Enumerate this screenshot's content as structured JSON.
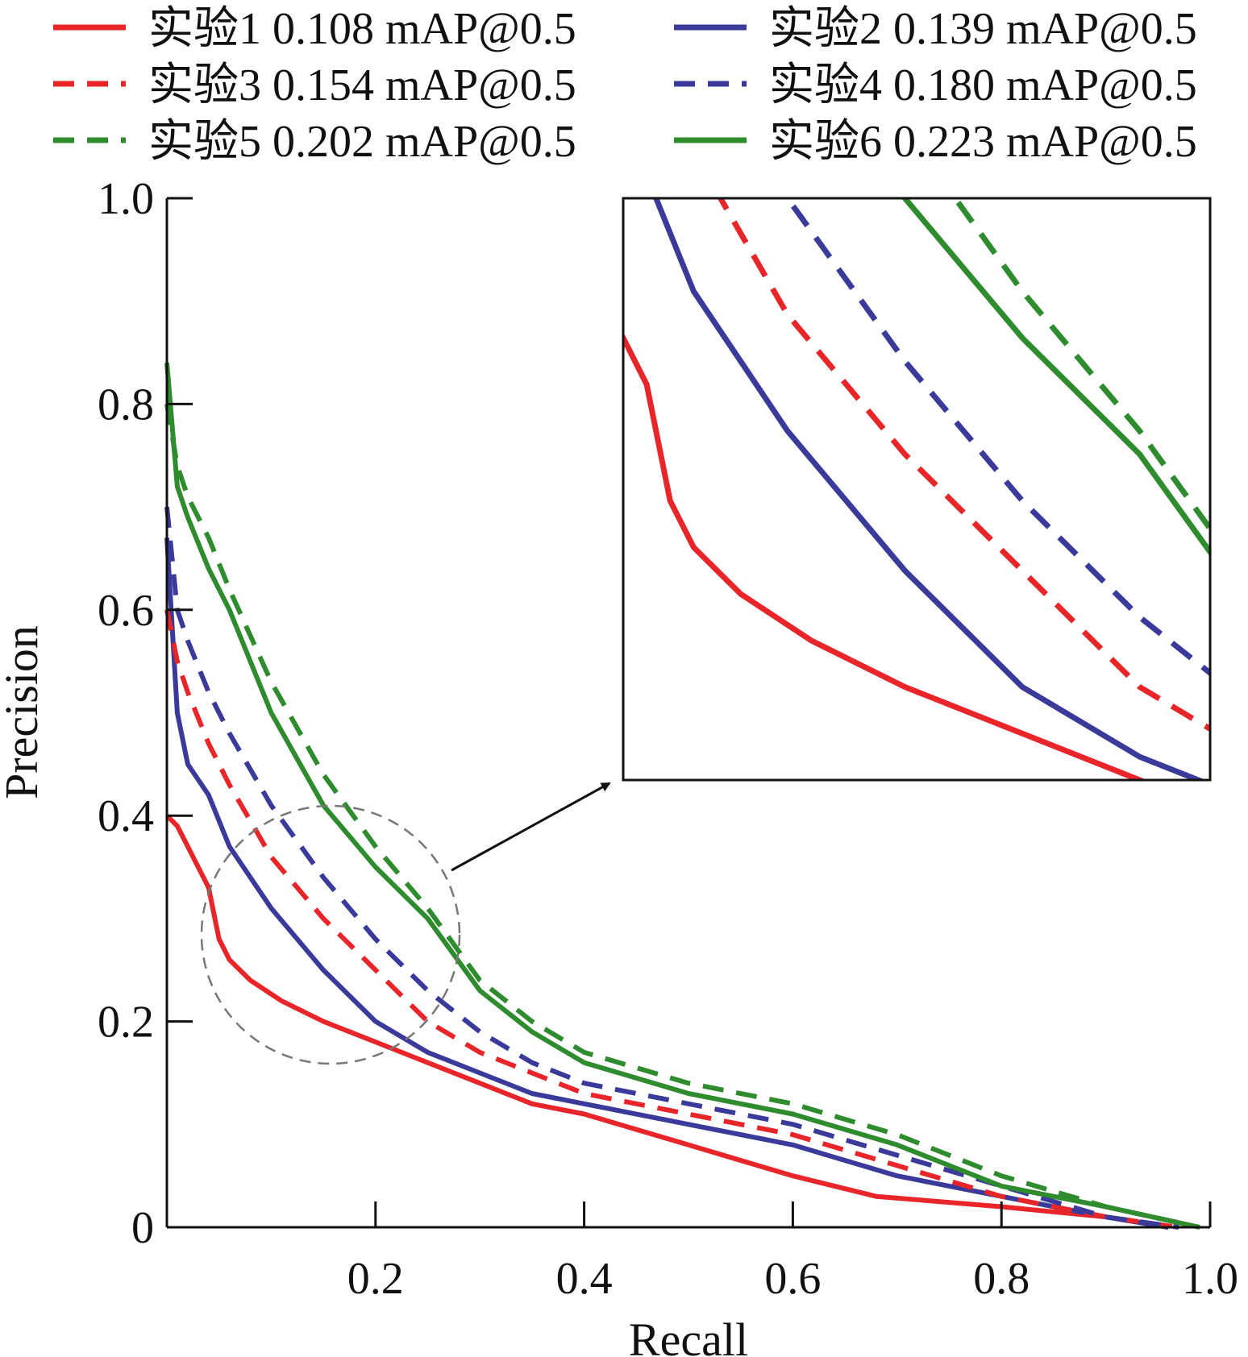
{
  "chart_data": {
    "type": "line",
    "xlabel": "Recall",
    "ylabel": "Precision",
    "xlim": [
      0,
      1.0
    ],
    "ylim": [
      0,
      1.0
    ],
    "x_ticks": [
      0.2,
      0.4,
      0.6,
      0.8,
      1.0
    ],
    "x_tick_labels": [
      "0.2",
      "0.4",
      "0.6",
      "0.8",
      "1.0"
    ],
    "y_ticks": [
      0,
      0.2,
      0.4,
      0.6,
      0.8,
      1.0
    ],
    "y_tick_labels": [
      "0",
      "0.2",
      "0.4",
      "0.6",
      "0.8",
      "1.0"
    ],
    "grid": false,
    "legend_position": "top",
    "zoom_inset": {
      "x_range": [
        0.03,
        0.28
      ],
      "y_range": [
        0.16,
        0.41
      ]
    },
    "series": [
      {
        "name": "实验1 0.108 mAP@0.5",
        "color": "#e8262a",
        "dashed": false,
        "x": [
          0,
          0.01,
          0.02,
          0.04,
          0.05,
          0.06,
          0.08,
          0.11,
          0.15,
          0.2,
          0.25,
          0.3,
          0.35,
          0.4,
          0.5,
          0.6,
          0.68,
          0.8,
          0.9,
          0.96
        ],
        "y": [
          0.4,
          0.39,
          0.37,
          0.33,
          0.28,
          0.26,
          0.24,
          0.22,
          0.2,
          0.18,
          0.16,
          0.14,
          0.12,
          0.11,
          0.08,
          0.05,
          0.03,
          0.02,
          0.01,
          0.0
        ]
      },
      {
        "name": "实验2 0.139 mAP@0.5",
        "color": "#3a3a9a",
        "dashed": false,
        "x": [
          0,
          0.01,
          0.02,
          0.04,
          0.06,
          0.1,
          0.15,
          0.2,
          0.25,
          0.3,
          0.35,
          0.4,
          0.5,
          0.6,
          0.7,
          0.8,
          0.9,
          0.96
        ],
        "y": [
          0.67,
          0.5,
          0.45,
          0.42,
          0.37,
          0.31,
          0.25,
          0.2,
          0.17,
          0.15,
          0.13,
          0.12,
          0.1,
          0.08,
          0.05,
          0.03,
          0.01,
          0.0
        ]
      },
      {
        "name": "实验3 0.154 mAP@0.5",
        "color": "#e8262a",
        "dashed": true,
        "x": [
          0,
          0.01,
          0.02,
          0.04,
          0.06,
          0.1,
          0.15,
          0.2,
          0.25,
          0.3,
          0.35,
          0.4,
          0.5,
          0.6,
          0.7,
          0.8,
          0.9,
          0.97
        ],
        "y": [
          0.6,
          0.55,
          0.52,
          0.47,
          0.43,
          0.36,
          0.3,
          0.25,
          0.2,
          0.17,
          0.15,
          0.13,
          0.11,
          0.09,
          0.06,
          0.03,
          0.01,
          0.0
        ]
      },
      {
        "name": "实验4 0.180 mAP@0.5",
        "color": "#3a3a9a",
        "dashed": true,
        "x": [
          0,
          0.01,
          0.02,
          0.04,
          0.06,
          0.1,
          0.15,
          0.2,
          0.25,
          0.3,
          0.35,
          0.4,
          0.5,
          0.6,
          0.7,
          0.8,
          0.9,
          0.97
        ],
        "y": [
          0.7,
          0.6,
          0.57,
          0.52,
          0.48,
          0.41,
          0.34,
          0.28,
          0.23,
          0.19,
          0.16,
          0.14,
          0.12,
          0.1,
          0.07,
          0.04,
          0.01,
          0.0
        ]
      },
      {
        "name": "实验5 0.202 mAP@0.5",
        "color": "#2e8b2e",
        "dashed": true,
        "x": [
          0,
          0.01,
          0.02,
          0.04,
          0.06,
          0.1,
          0.15,
          0.2,
          0.25,
          0.3,
          0.35,
          0.4,
          0.5,
          0.6,
          0.7,
          0.8,
          0.9,
          0.99
        ],
        "y": [
          0.8,
          0.74,
          0.71,
          0.67,
          0.62,
          0.53,
          0.44,
          0.37,
          0.31,
          0.24,
          0.2,
          0.17,
          0.14,
          0.12,
          0.09,
          0.05,
          0.02,
          0.0
        ]
      },
      {
        "name": "实验6 0.223 mAP@0.5",
        "color": "#2e8b2e",
        "dashed": false,
        "x": [
          0,
          0.01,
          0.02,
          0.04,
          0.06,
          0.1,
          0.15,
          0.2,
          0.25,
          0.3,
          0.35,
          0.4,
          0.5,
          0.6,
          0.7,
          0.8,
          0.9,
          0.99
        ],
        "y": [
          0.84,
          0.72,
          0.69,
          0.64,
          0.6,
          0.5,
          0.41,
          0.35,
          0.3,
          0.23,
          0.19,
          0.16,
          0.13,
          0.11,
          0.08,
          0.04,
          0.02,
          0.0
        ]
      }
    ]
  }
}
